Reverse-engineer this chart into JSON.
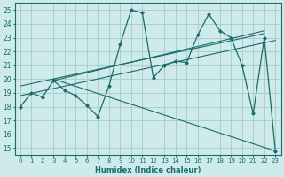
{
  "xlabel": "Humidex (Indice chaleur)",
  "bg_color": "#ceeaea",
  "grid_color": "#aacece",
  "line_color": "#1a6b6b",
  "xlim": [
    -0.5,
    23.5
  ],
  "ylim": [
    14.5,
    25.5
  ],
  "xticks": [
    0,
    1,
    2,
    3,
    4,
    5,
    6,
    7,
    8,
    9,
    10,
    11,
    12,
    13,
    14,
    15,
    16,
    17,
    18,
    19,
    20,
    21,
    22,
    23
  ],
  "yticks": [
    15,
    16,
    17,
    18,
    19,
    20,
    21,
    22,
    23,
    24,
    25
  ],
  "series1": {
    "x": [
      0,
      1,
      2,
      3,
      4,
      5,
      6,
      7,
      8,
      9,
      10,
      11,
      12,
      13,
      14,
      15,
      16,
      17,
      18,
      19,
      20,
      21,
      22,
      23
    ],
    "y": [
      18,
      19,
      18.7,
      19.9,
      19.2,
      18.8,
      18.1,
      17.3,
      19.5,
      22.5,
      25.0,
      24.8,
      20.1,
      21.0,
      21.3,
      21.2,
      23.2,
      24.7,
      23.5,
      23.0,
      21.0,
      17.5,
      23.0,
      14.8
    ]
  },
  "series2": {
    "x": [
      3,
      22
    ],
    "y": [
      19.9,
      23.5
    ]
  },
  "series3": {
    "x": [
      0,
      23
    ],
    "y": [
      18.8,
      22.8
    ]
  },
  "series4": {
    "x": [
      3,
      23
    ],
    "y": [
      20.0,
      14.8
    ]
  },
  "series5": {
    "x": [
      0,
      22
    ],
    "y": [
      19.5,
      23.3
    ]
  }
}
